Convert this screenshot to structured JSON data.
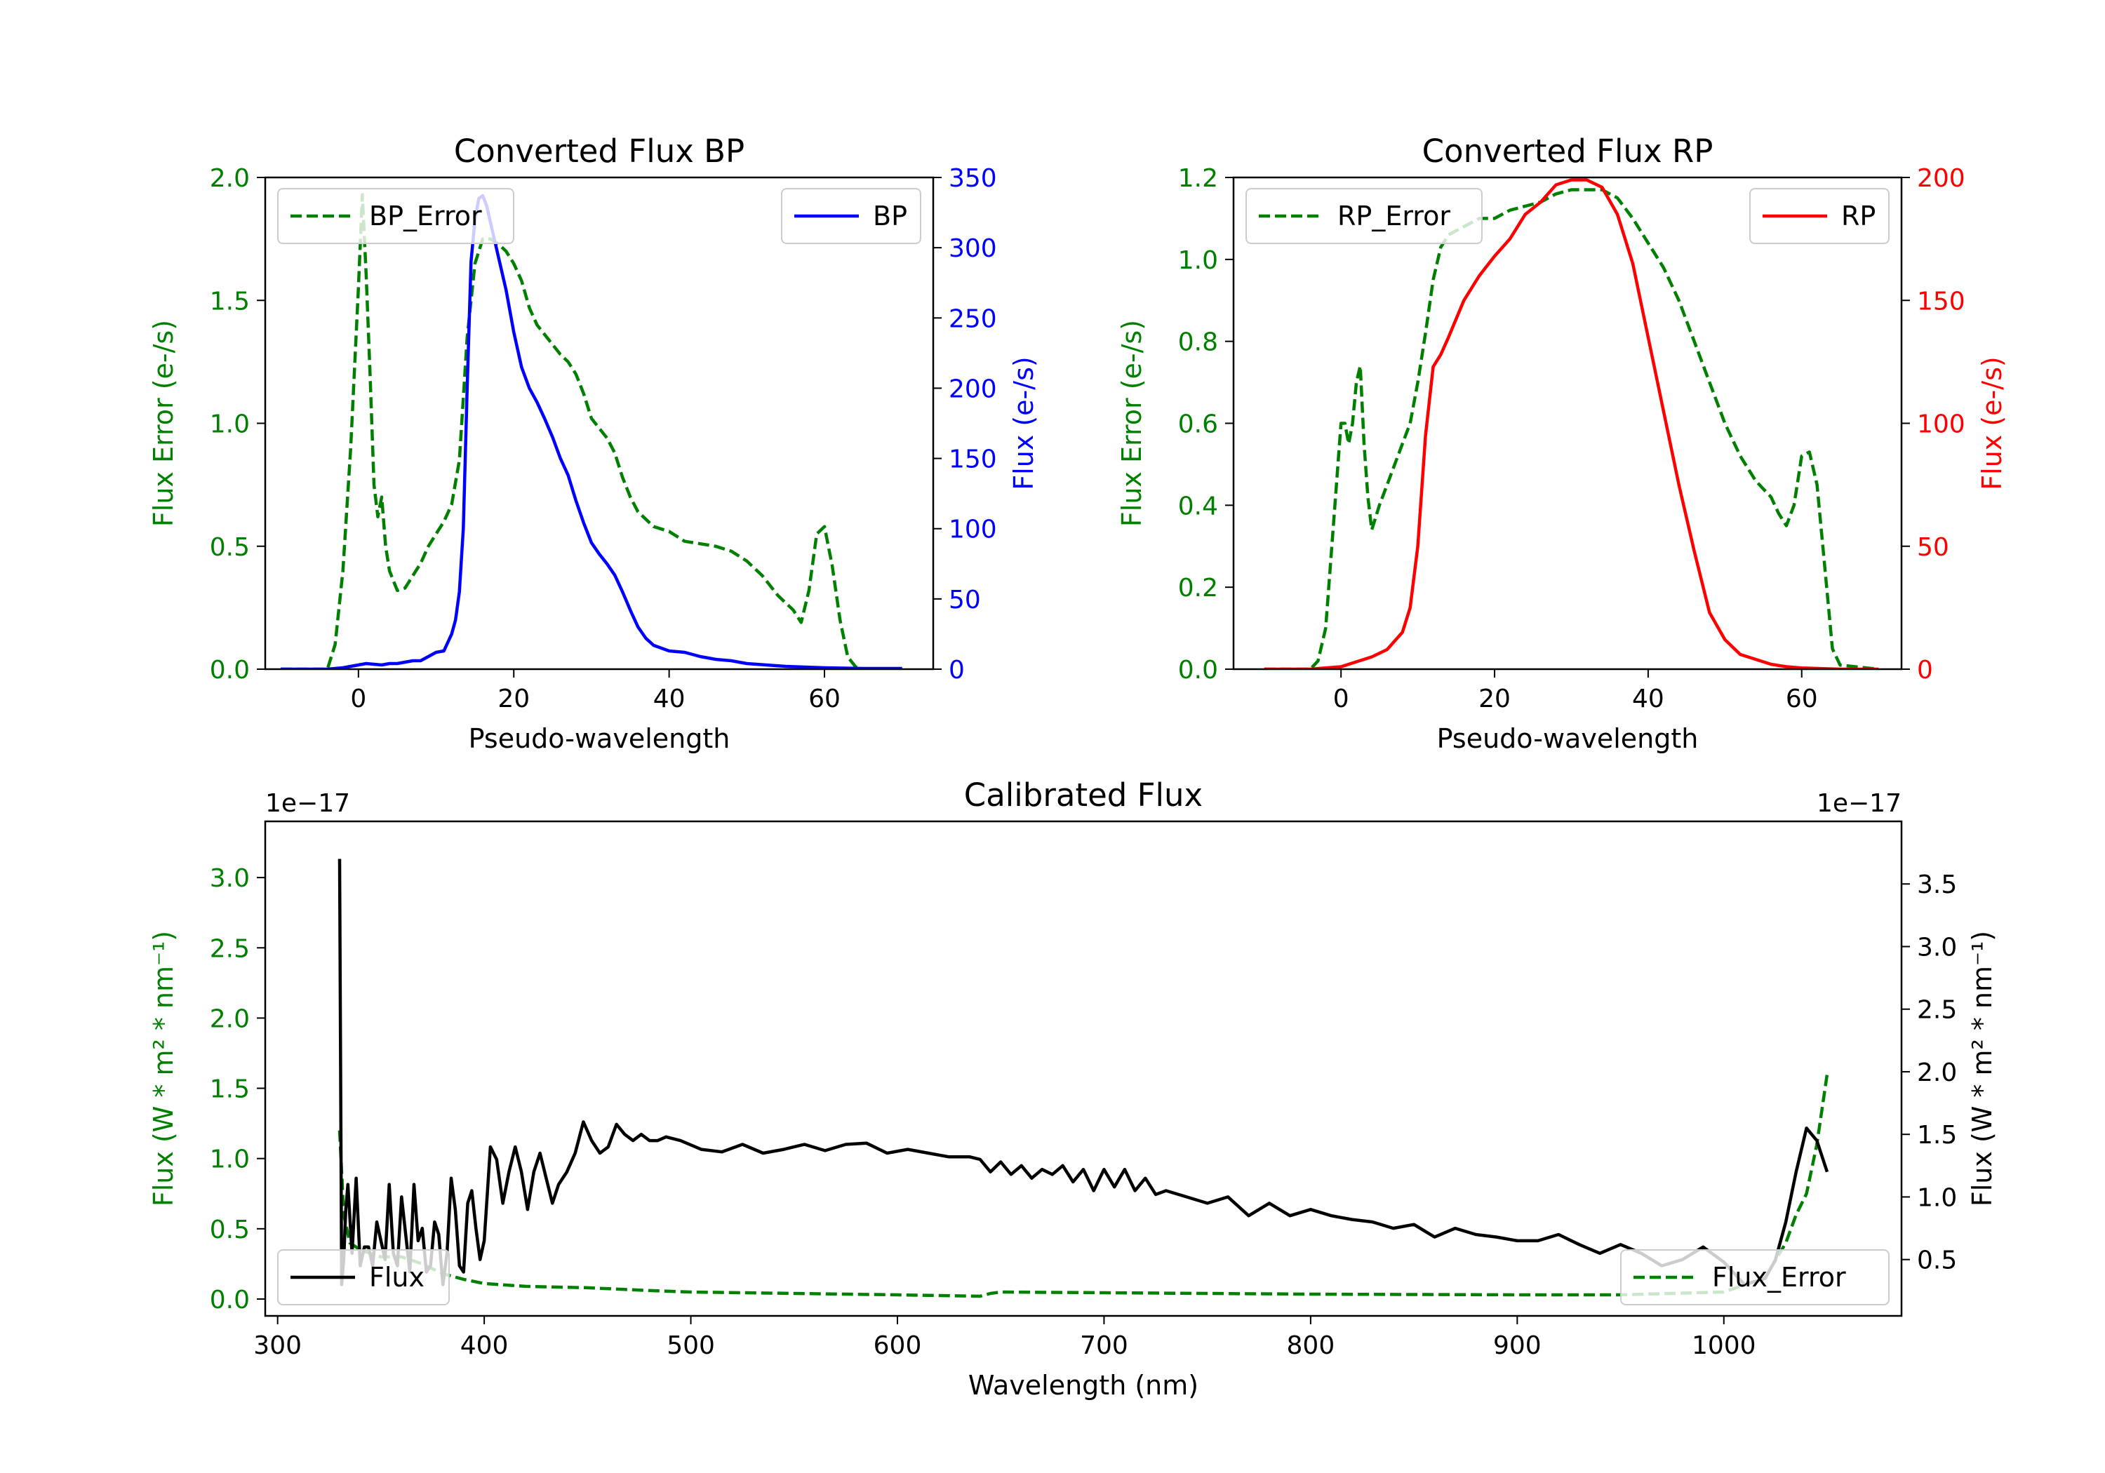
{
  "colors": {
    "bp": "#0000ff",
    "rp": "#ff0000",
    "error": "#008000",
    "flux": "#000000"
  },
  "chart_data": [
    {
      "id": "bp",
      "type": "line",
      "title": "Converted Flux BP",
      "xlabel": "Pseudo-wavelength",
      "ylabel_left": "Flux Error (e-/s)",
      "ylabel_right": "Flux (e-/s)",
      "xlim": [
        -12,
        74
      ],
      "ylim_left": [
        0,
        2.0
      ],
      "ylim_right": [
        0,
        350
      ],
      "xticks": [
        0,
        20,
        40,
        60
      ],
      "yticks_left": [
        "0.0",
        "0.5",
        "1.0",
        "1.5",
        "2.0"
      ],
      "yticks_left_values": [
        0,
        0.5,
        1.0,
        1.5,
        2.0
      ],
      "yticks_right": [
        "0",
        "50",
        "100",
        "150",
        "200",
        "250",
        "300",
        "350"
      ],
      "yticks_right_values": [
        0,
        50,
        100,
        150,
        200,
        250,
        300,
        350
      ],
      "legend_left": "BP_Error",
      "legend_right": "BP",
      "series_error": {
        "name": "BP_Error",
        "x": [
          -10,
          -4,
          -3,
          -2,
          -1,
          0,
          0.5,
          1,
          1.5,
          2,
          2.5,
          3,
          3.5,
          4,
          5,
          6,
          7,
          8,
          9,
          10,
          11,
          12,
          13,
          14,
          15,
          16,
          17,
          18,
          19,
          20,
          21,
          22,
          23,
          24,
          25,
          26,
          27,
          28,
          29,
          30,
          31,
          32,
          33,
          34,
          35,
          36,
          38,
          40,
          42,
          44,
          46,
          48,
          50,
          52,
          54,
          56,
          57,
          58,
          59,
          60,
          61,
          62,
          63,
          64,
          65,
          70
        ],
        "y": [
          0,
          0,
          0.1,
          0.4,
          0.9,
          1.55,
          1.93,
          1.6,
          1.2,
          0.75,
          0.62,
          0.7,
          0.5,
          0.4,
          0.32,
          0.33,
          0.38,
          0.43,
          0.5,
          0.55,
          0.6,
          0.67,
          0.85,
          1.35,
          1.65,
          1.75,
          1.75,
          1.73,
          1.7,
          1.65,
          1.58,
          1.47,
          1.4,
          1.36,
          1.32,
          1.28,
          1.25,
          1.2,
          1.12,
          1.02,
          0.98,
          0.94,
          0.88,
          0.78,
          0.7,
          0.64,
          0.58,
          0.56,
          0.52,
          0.51,
          0.5,
          0.48,
          0.44,
          0.38,
          0.3,
          0.24,
          0.19,
          0.32,
          0.55,
          0.58,
          0.42,
          0.2,
          0.05,
          0.01,
          0,
          0
        ]
      },
      "series_flux": {
        "name": "BP",
        "x": [
          -10,
          -4,
          -2,
          0,
          1,
          2,
          3,
          4,
          5,
          6,
          7,
          8,
          9,
          10,
          11,
          12,
          12.5,
          13,
          13.5,
          14,
          14.5,
          15,
          15.5,
          16,
          16.5,
          17,
          17.5,
          18,
          19,
          20,
          21,
          22,
          23,
          24,
          25,
          26,
          27,
          28,
          29,
          30,
          31,
          32,
          33,
          34,
          35,
          36,
          37,
          38,
          40,
          42,
          44,
          46,
          48,
          50,
          55,
          60,
          65,
          70
        ],
        "y": [
          0,
          0,
          1,
          3,
          4,
          3.5,
          3,
          4,
          4,
          5,
          6,
          6,
          9,
          12,
          13,
          25,
          35,
          55,
          100,
          200,
          290,
          320,
          335,
          337,
          330,
          318,
          306,
          294,
          270,
          240,
          215,
          200,
          190,
          178,
          165,
          150,
          138,
          120,
          104,
          90,
          82,
          75,
          67,
          55,
          42,
          30,
          22,
          17,
          13,
          12,
          9,
          7,
          6,
          4,
          2,
          1,
          0.5,
          0.5
        ]
      }
    },
    {
      "id": "rp",
      "type": "line",
      "title": "Converted Flux RP",
      "xlabel": "Pseudo-wavelength",
      "ylabel_left": "Flux Error (e-/s)",
      "ylabel_right": "Flux (e-/s)",
      "xlim": [
        -14,
        73
      ],
      "ylim_left": [
        0,
        1.2
      ],
      "ylim_right": [
        0,
        200
      ],
      "xticks": [
        0,
        20,
        40,
        60
      ],
      "yticks_left": [
        "0.0",
        "0.2",
        "0.4",
        "0.6",
        "0.8",
        "1.0",
        "1.2"
      ],
      "yticks_left_values": [
        0,
        0.2,
        0.4,
        0.6,
        0.8,
        1.0,
        1.2
      ],
      "yticks_right": [
        "0",
        "50",
        "100",
        "150",
        "200"
      ],
      "yticks_right_values": [
        0,
        50,
        100,
        150,
        200
      ],
      "legend_left": "RP_Error",
      "legend_right": "RP",
      "series_error": {
        "name": "RP_Error",
        "x": [
          -10,
          -4,
          -3,
          -2,
          -1,
          0,
          0.5,
          1,
          1.5,
          2,
          2.5,
          3,
          3.5,
          4,
          5,
          6,
          7,
          8,
          9,
          10,
          11,
          12,
          13,
          14,
          16,
          18,
          20,
          22,
          24,
          26,
          28,
          30,
          32,
          34,
          36,
          38,
          40,
          42,
          44,
          46,
          48,
          50,
          52,
          54,
          55,
          56,
          57,
          58,
          59,
          60,
          61,
          62,
          63,
          64,
          65,
          70
        ],
        "y": [
          0,
          0,
          0.02,
          0.1,
          0.35,
          0.6,
          0.6,
          0.55,
          0.6,
          0.7,
          0.74,
          0.55,
          0.42,
          0.34,
          0.4,
          0.45,
          0.5,
          0.55,
          0.6,
          0.7,
          0.82,
          0.95,
          1.03,
          1.06,
          1.08,
          1.1,
          1.1,
          1.12,
          1.13,
          1.14,
          1.16,
          1.17,
          1.17,
          1.17,
          1.15,
          1.1,
          1.04,
          0.98,
          0.9,
          0.8,
          0.7,
          0.6,
          0.52,
          0.46,
          0.44,
          0.42,
          0.38,
          0.35,
          0.4,
          0.52,
          0.53,
          0.45,
          0.25,
          0.05,
          0.01,
          0
        ]
      },
      "series_flux": {
        "name": "RP",
        "x": [
          -10,
          -4,
          0,
          2,
          4,
          6,
          8,
          9,
          10,
          11,
          12,
          13,
          14,
          16,
          18,
          20,
          22,
          24,
          26,
          28,
          30,
          32,
          34,
          36,
          38,
          40,
          42,
          44,
          46,
          48,
          50,
          52,
          54,
          56,
          58,
          60,
          65,
          70
        ],
        "y": [
          0,
          0,
          1,
          3,
          5,
          8,
          15,
          25,
          50,
          95,
          123,
          128,
          135,
          150,
          160,
          168,
          175,
          185,
          190,
          197,
          199,
          199,
          196,
          185,
          165,
          135,
          105,
          75,
          48,
          23,
          12,
          6,
          4,
          2,
          1,
          0.5,
          0,
          0
        ]
      }
    },
    {
      "id": "calibrated",
      "type": "line",
      "title": "Calibrated Flux",
      "xlabel": "Wavelength (nm)",
      "ylabel_left": "Flux (W * m² * nm⁻¹)",
      "ylabel_right": "Flux (W * m² * nm⁻¹)",
      "offset_left": "1e−17",
      "offset_right": "1e−17",
      "xlim": [
        294,
        1086
      ],
      "ylim_left": [
        -0.12,
        3.4
      ],
      "ylim_right": [
        0.05,
        4.0
      ],
      "xticks": [
        300,
        400,
        500,
        600,
        700,
        800,
        900,
        1000
      ],
      "yticks_left": [
        "0.0",
        "0.5",
        "1.0",
        "1.5",
        "2.0",
        "2.5",
        "3.0"
      ],
      "yticks_left_values": [
        0,
        0.5,
        1.0,
        1.5,
        2.0,
        2.5,
        3.0
      ],
      "yticks_right": [
        "0.5",
        "1.0",
        "1.5",
        "2.0",
        "2.5",
        "3.0",
        "3.5"
      ],
      "yticks_right_values": [
        0.5,
        1.0,
        1.5,
        2.0,
        2.5,
        3.0,
        3.5
      ],
      "legend_left": "Flux",
      "legend_right": "Flux_Error",
      "series_error": {
        "name": "Flux_Error",
        "axis": "left",
        "x": [
          330,
          332,
          335,
          340,
          350,
          360,
          370,
          380,
          390,
          400,
          420,
          450,
          480,
          500,
          550,
          600,
          640,
          645,
          650,
          700,
          800,
          900,
          950,
          1000,
          1020,
          1030,
          1035,
          1040,
          1045,
          1050
        ],
        "y": [
          1.2,
          0.6,
          0.4,
          0.35,
          0.3,
          0.3,
          0.25,
          0.18,
          0.14,
          0.11,
          0.09,
          0.08,
          0.06,
          0.05,
          0.04,
          0.03,
          0.02,
          0.04,
          0.05,
          0.045,
          0.035,
          0.03,
          0.03,
          0.05,
          0.15,
          0.4,
          0.6,
          0.75,
          1.1,
          1.6
        ]
      },
      "series_flux": {
        "name": "Flux",
        "axis": "right",
        "x": [
          330,
          331,
          332,
          333,
          334,
          336,
          338,
          340,
          342,
          344,
          346,
          348,
          350,
          352,
          354,
          356,
          358,
          360,
          362,
          364,
          366,
          368,
          370,
          372,
          374,
          376,
          378,
          380,
          382,
          384,
          386,
          388,
          390,
          392,
          394,
          396,
          398,
          400,
          403,
          406,
          409,
          412,
          415,
          418,
          421,
          424,
          427,
          430,
          433,
          436,
          440,
          444,
          448,
          452,
          456,
          460,
          464,
          468,
          472,
          476,
          480,
          484,
          488,
          495,
          505,
          515,
          525,
          535,
          545,
          555,
          565,
          575,
          585,
          595,
          605,
          615,
          625,
          635,
          640,
          645,
          650,
          655,
          660,
          665,
          670,
          675,
          680,
          685,
          690,
          695,
          700,
          705,
          710,
          715,
          720,
          725,
          730,
          740,
          750,
          760,
          770,
          780,
          790,
          800,
          810,
          820,
          830,
          840,
          850,
          860,
          870,
          880,
          890,
          900,
          910,
          920,
          930,
          940,
          950,
          960,
          970,
          980,
          990,
          1000,
          1010,
          1020,
          1025,
          1030,
          1035,
          1040,
          1045,
          1050
        ],
        "y": [
          3.7,
          0.3,
          0.5,
          0.9,
          1.1,
          0.55,
          1.15,
          0.45,
          0.6,
          0.6,
          0.45,
          0.8,
          0.65,
          0.5,
          1.1,
          0.55,
          0.45,
          1.0,
          0.7,
          0.4,
          1.1,
          0.65,
          0.75,
          0.4,
          0.45,
          0.8,
          0.7,
          0.3,
          0.55,
          1.15,
          0.9,
          0.45,
          0.4,
          0.95,
          1.05,
          0.75,
          0.5,
          0.65,
          1.4,
          1.3,
          0.95,
          1.2,
          1.4,
          1.2,
          0.9,
          1.2,
          1.35,
          1.15,
          0.95,
          1.1,
          1.2,
          1.35,
          1.6,
          1.45,
          1.35,
          1.4,
          1.58,
          1.5,
          1.45,
          1.5,
          1.45,
          1.45,
          1.48,
          1.45,
          1.38,
          1.36,
          1.42,
          1.35,
          1.38,
          1.42,
          1.37,
          1.42,
          1.43,
          1.35,
          1.38,
          1.35,
          1.32,
          1.32,
          1.3,
          1.2,
          1.28,
          1.18,
          1.25,
          1.15,
          1.22,
          1.18,
          1.25,
          1.12,
          1.22,
          1.05,
          1.22,
          1.08,
          1.22,
          1.05,
          1.15,
          1.02,
          1.05,
          1.0,
          0.95,
          1.0,
          0.85,
          0.95,
          0.85,
          0.9,
          0.85,
          0.82,
          0.8,
          0.75,
          0.78,
          0.68,
          0.75,
          0.7,
          0.68,
          0.65,
          0.65,
          0.7,
          0.62,
          0.55,
          0.62,
          0.55,
          0.45,
          0.5,
          0.6,
          0.48,
          0.3,
          0.35,
          0.5,
          0.8,
          1.2,
          1.55,
          1.45,
          1.2
        ]
      }
    }
  ]
}
